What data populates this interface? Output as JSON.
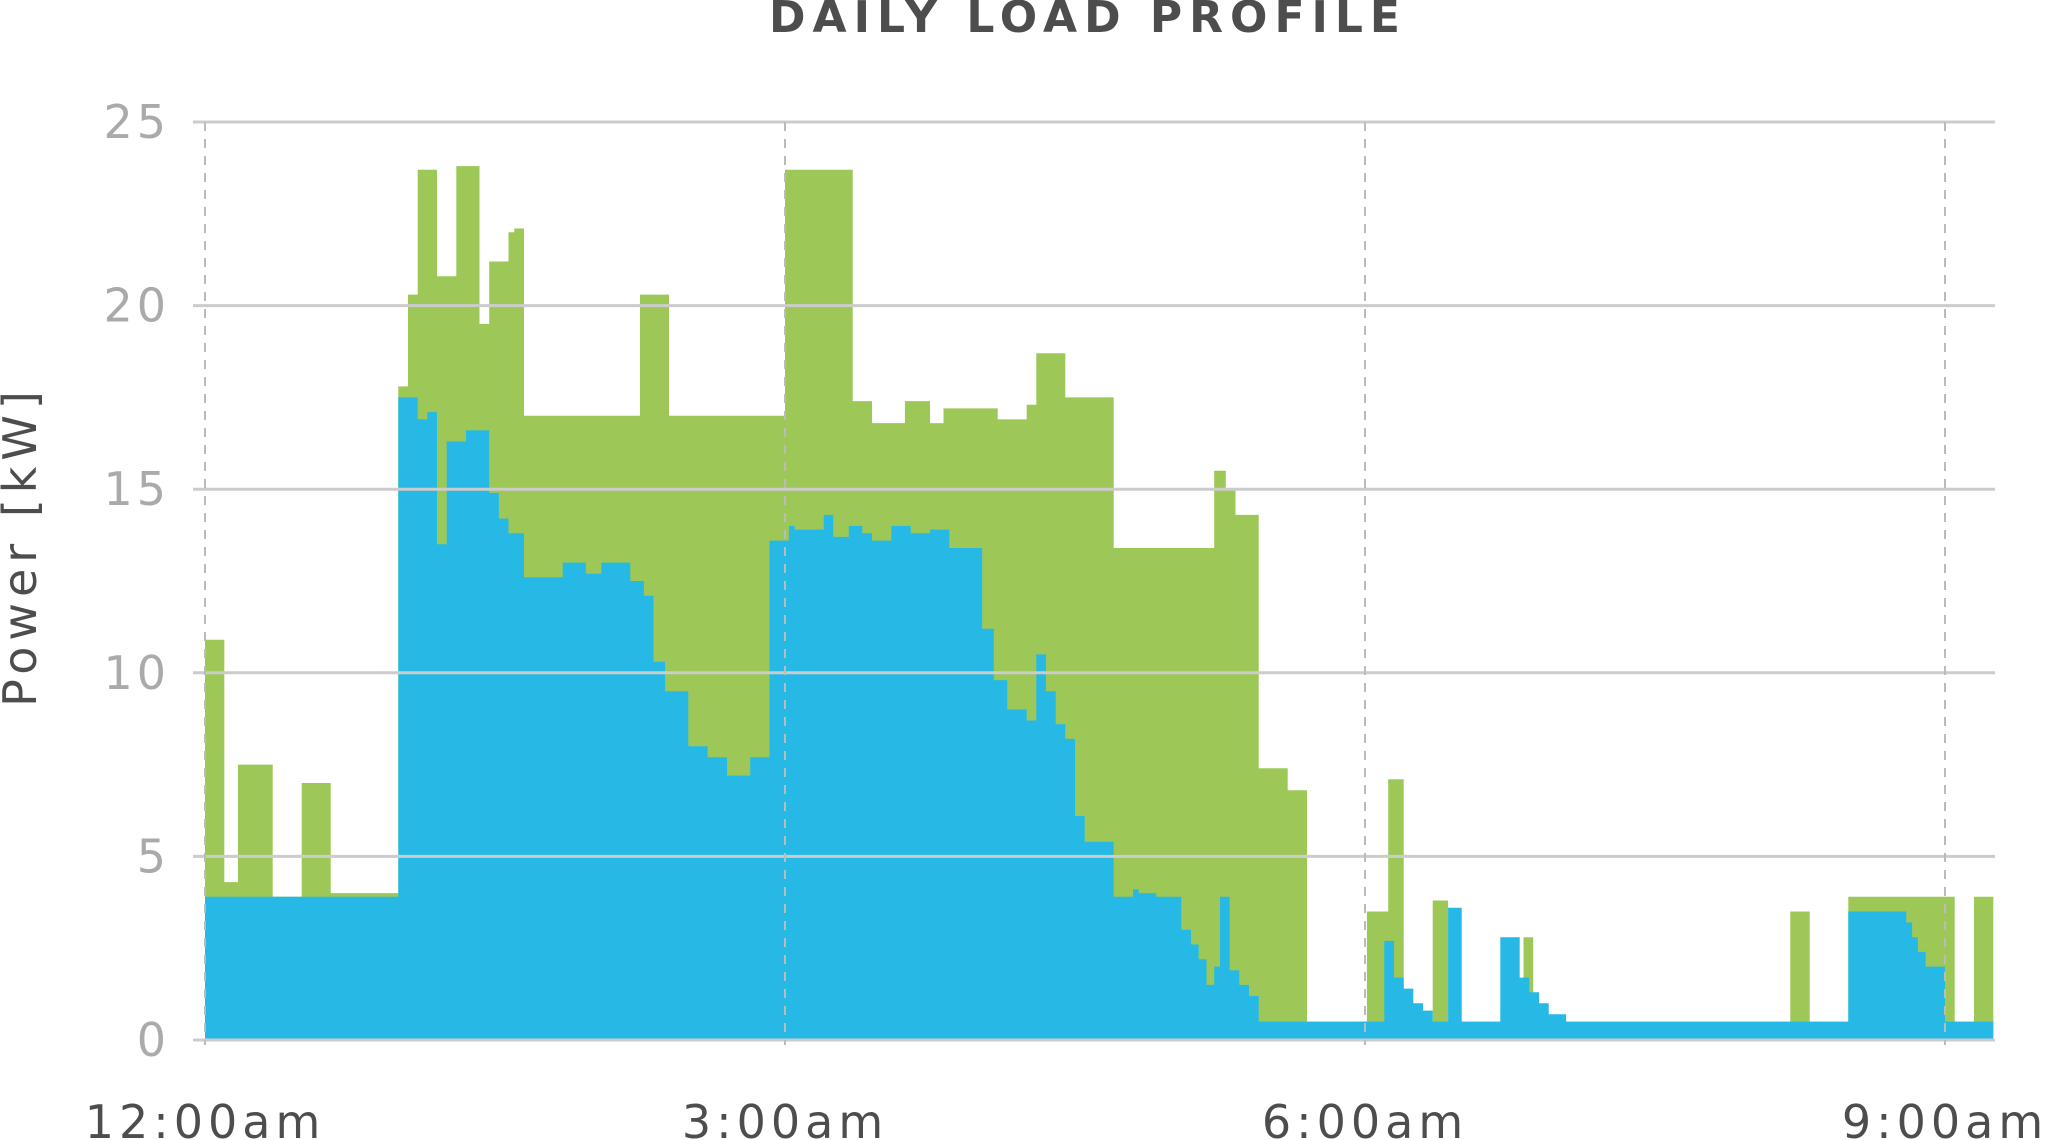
{
  "chart_data": {
    "type": "area",
    "title": "DAILY LOAD PROFILE",
    "xlabel": "",
    "ylabel": "Power [kW]",
    "ylim": [
      0,
      25
    ],
    "xlim_hours": [
      0,
      9.25
    ],
    "x_tick_labels": [
      "12:00am",
      "3:00am",
      "6:00am",
      "9:00am"
    ],
    "y_tick_labels": [
      "0",
      "5",
      "10",
      "15",
      "20",
      "25"
    ],
    "y_ticks": [
      0,
      5,
      10,
      15,
      20,
      25
    ],
    "grid": true,
    "colors": {
      "total": "#9dc857",
      "base": "#27b9e6",
      "grid": "#cccccc",
      "xgrid": "#bbbbbb"
    },
    "series": [
      {
        "role": "total",
        "x": [
          0.0,
          0.1,
          0.17,
          0.35,
          0.5,
          0.65,
          0.85,
          0.95,
          1.0,
          1.05,
          1.1,
          1.2,
          1.3,
          1.42,
          1.47,
          1.57,
          1.6,
          1.65,
          1.7,
          1.8,
          2.25,
          2.4,
          2.6,
          2.97,
          3.0,
          3.05,
          3.35,
          3.45,
          3.62,
          3.75,
          3.82,
          4.1,
          4.25,
          4.3,
          4.35,
          4.45,
          4.7,
          4.75,
          5.22,
          5.28,
          5.33,
          5.45,
          5.6,
          5.7,
          5.93,
          6.01,
          6.12,
          6.2,
          6.35,
          6.43,
          6.58,
          6.82,
          6.87,
          7.04,
          8.2,
          8.3,
          8.5,
          9.05,
          9.15,
          9.25
        ],
        "y": [
          10.9,
          4.3,
          7.5,
          3.9,
          7.0,
          4.0,
          4.0,
          4.0,
          17.8,
          20.3,
          23.7,
          20.8,
          23.8,
          19.5,
          21.2,
          22.0,
          22.1,
          17.0,
          17.0,
          17.0,
          20.3,
          17.0,
          17.0,
          17.0,
          23.7,
          23.7,
          17.4,
          16.8,
          17.4,
          16.8,
          17.2,
          16.9,
          17.3,
          18.7,
          18.7,
          17.5,
          13.4,
          13.4,
          15.5,
          15.0,
          14.3,
          7.4,
          6.8,
          0.5,
          0.5,
          3.5,
          7.1,
          0.5,
          3.8,
          0.5,
          0.5,
          2.8,
          0.5,
          0.5,
          3.5,
          0.5,
          3.9,
          0.5,
          3.9,
          3.9
        ]
      },
      {
        "role": "base",
        "x": [
          0.0,
          0.95,
          1.0,
          1.1,
          1.15,
          1.2,
          1.25,
          1.35,
          1.47,
          1.52,
          1.57,
          1.65,
          1.85,
          1.97,
          2.05,
          2.2,
          2.27,
          2.32,
          2.38,
          2.5,
          2.6,
          2.7,
          2.82,
          2.92,
          3.02,
          3.05,
          3.2,
          3.25,
          3.33,
          3.4,
          3.45,
          3.55,
          3.65,
          3.75,
          3.85,
          4.02,
          4.08,
          4.15,
          4.25,
          4.3,
          4.35,
          4.4,
          4.45,
          4.5,
          4.55,
          4.6,
          4.7,
          4.8,
          4.83,
          4.92,
          5.05,
          5.1,
          5.14,
          5.18,
          5.22,
          5.25,
          5.3,
          5.35,
          5.4,
          5.45,
          6.1,
          6.15,
          6.2,
          6.25,
          6.3,
          6.35,
          6.43,
          6.5,
          6.7,
          6.8,
          6.85,
          6.9,
          6.95,
          7.04,
          8.5,
          8.6,
          8.75,
          8.8,
          8.83,
          8.86,
          8.9,
          9.0,
          9.25
        ],
        "y": [
          3.9,
          3.9,
          17.5,
          16.9,
          17.1,
          13.5,
          16.3,
          16.6,
          14.9,
          14.2,
          13.8,
          12.6,
          13.0,
          12.7,
          13.0,
          12.5,
          12.1,
          10.3,
          9.5,
          8.0,
          7.7,
          7.2,
          7.7,
          13.6,
          14.0,
          13.9,
          14.3,
          13.7,
          14.0,
          13.8,
          13.6,
          14.0,
          13.8,
          13.9,
          13.4,
          11.2,
          9.8,
          9.0,
          8.7,
          10.5,
          9.5,
          8.6,
          8.2,
          6.1,
          5.4,
          5.4,
          3.9,
          4.1,
          4.0,
          3.9,
          3.0,
          2.6,
          2.2,
          1.5,
          2.0,
          3.9,
          1.9,
          1.5,
          1.2,
          0.5,
          2.7,
          1.7,
          1.4,
          1.0,
          0.8,
          0.5,
          3.6,
          0.5,
          2.8,
          1.7,
          1.3,
          1.0,
          0.7,
          0.5,
          3.5,
          3.5,
          3.5,
          3.2,
          2.8,
          2.4,
          2.0,
          0.5,
          0.5
        ]
      }
    ]
  }
}
